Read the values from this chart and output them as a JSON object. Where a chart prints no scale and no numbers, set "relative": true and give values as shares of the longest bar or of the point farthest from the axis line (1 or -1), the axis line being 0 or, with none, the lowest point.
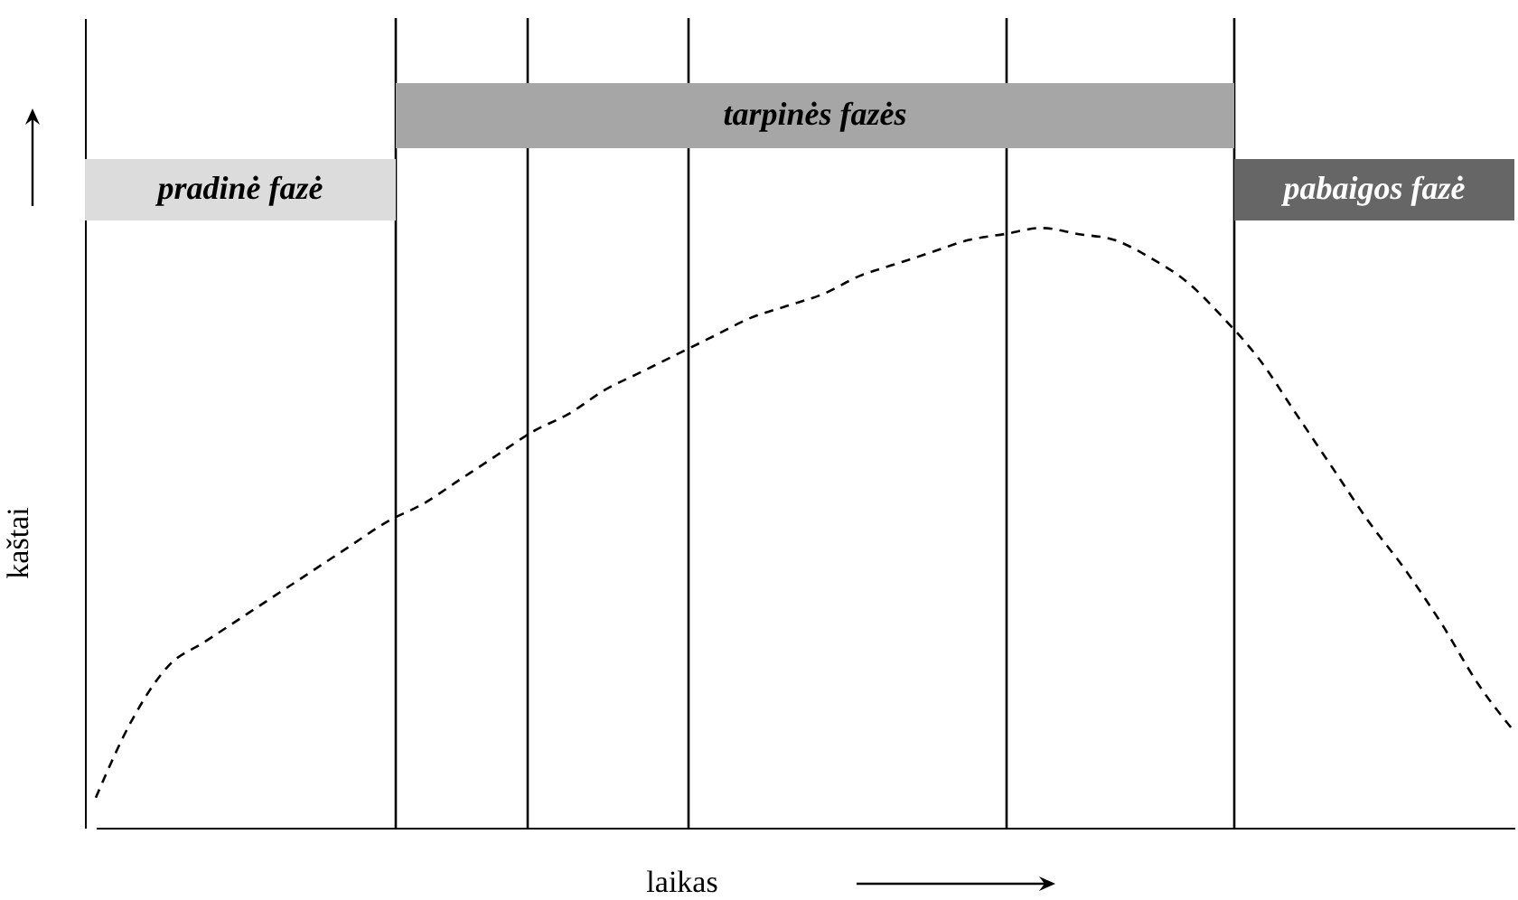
{
  "chart_data": {
    "type": "line",
    "relative": true,
    "xlabel": "laikas",
    "ylabel": "kaštai",
    "line_style": "dashed",
    "categories": [
      null,
      null,
      null,
      null,
      null,
      null,
      null,
      null,
      null,
      null,
      null,
      null,
      null,
      null,
      null,
      null,
      null,
      null,
      null,
      null,
      null,
      null,
      null,
      null,
      null,
      null,
      null,
      null,
      null,
      null,
      null,
      null,
      null,
      null,
      null,
      null,
      null,
      null,
      null,
      null
    ],
    "series": [
      {
        "color": "#000000",
        "values": [
          0.05,
          0.18,
          0.27,
          0.31,
          0.35,
          0.39,
          0.43,
          0.47,
          0.51,
          0.54,
          0.58,
          0.62,
          0.66,
          0.69,
          0.73,
          0.76,
          0.79,
          0.82,
          0.85,
          0.87,
          0.89,
          0.92,
          0.94,
          0.96,
          0.98,
          0.99,
          1,
          0.99,
          0.98,
          0.95,
          0.91,
          0.85,
          0.78,
          0.69,
          0.6,
          0.51,
          0.43,
          0.34,
          0.24,
          0.16
        ]
      }
    ],
    "annotations": [
      "pradinė fazė",
      "tarpinės fazės",
      "pabaigos fazė"
    ]
  }
}
